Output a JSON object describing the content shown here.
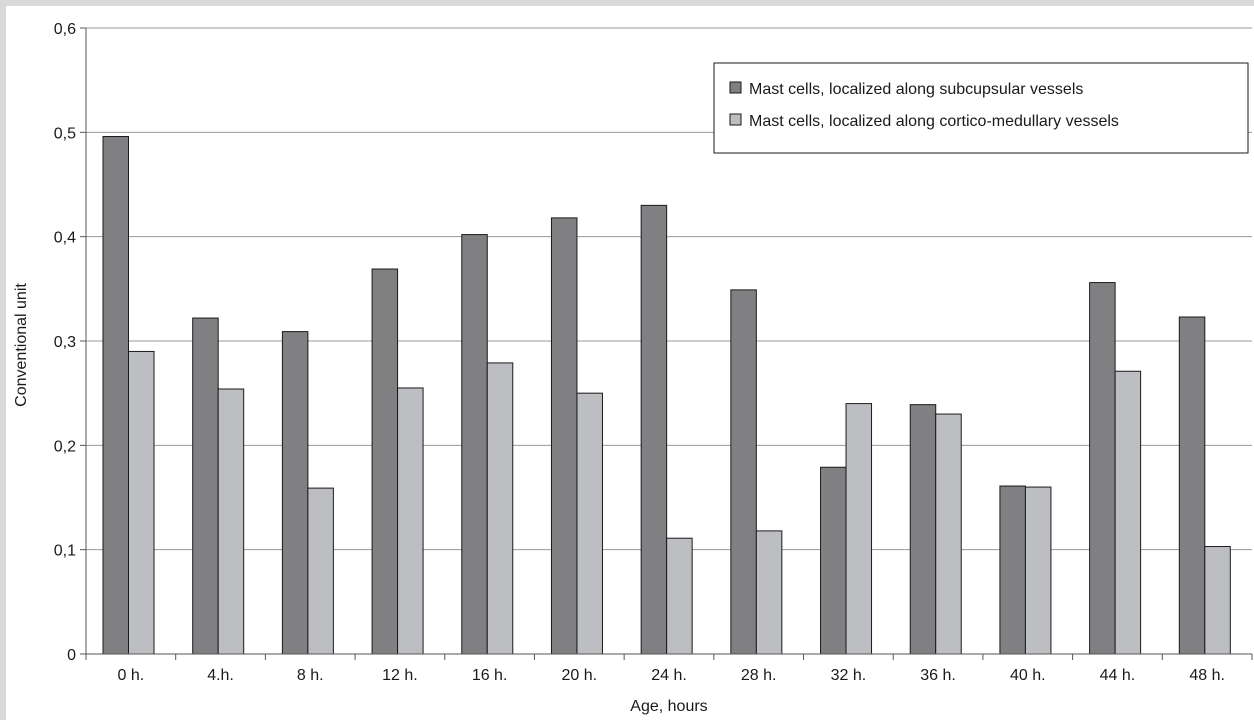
{
  "chart_data": {
    "type": "bar",
    "title": "",
    "xlabel": "Age, hours",
    "ylabel": "Conventional unit",
    "categories": [
      "0 h.",
      "4.h.",
      "8 h.",
      "12 h.",
      "16 h.",
      "20 h.",
      "24 h.",
      "28 h.",
      "32 h.",
      "36 h.",
      "40 h.",
      "44 h.",
      "48 h."
    ],
    "series": [
      {
        "name": "Mast cells, localized along subcupsular vessels",
        "color": "#808083",
        "values": [
          0.496,
          0.322,
          0.309,
          0.369,
          0.402,
          0.418,
          0.43,
          0.349,
          0.179,
          0.239,
          0.161,
          0.356,
          0.323
        ]
      },
      {
        "name": "Mast cells, localized along cortico-medullary vessels",
        "color": "#bcbec1",
        "values": [
          0.29,
          0.254,
          0.159,
          0.255,
          0.279,
          0.25,
          0.111,
          0.118,
          0.24,
          0.23,
          0.16,
          0.271,
          0.103
        ]
      }
    ],
    "ylim": [
      0,
      0.6
    ],
    "yticks": [
      0,
      0.1,
      0.2,
      0.3,
      0.4,
      0.5,
      0.6
    ],
    "ytick_labels": [
      "0",
      "0,1",
      "0,2",
      "0,3",
      "0,4",
      "0,5",
      "0,6"
    ],
    "grid": true,
    "legend_position": "top-right"
  }
}
